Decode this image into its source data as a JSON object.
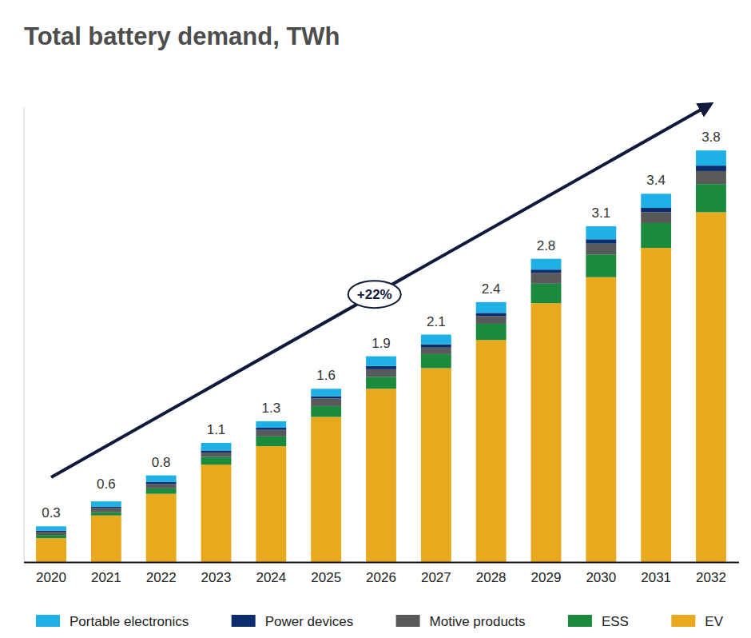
{
  "chart_data": {
    "type": "bar",
    "stacked": true,
    "title": "Total battery demand, TWh",
    "annotation": "+22%",
    "tick_labels": "x",
    "legend": "bottom",
    "categories": [
      "2020",
      "2021",
      "2022",
      "2023",
      "2024",
      "2025",
      "2026",
      "2027",
      "2028",
      "2029",
      "2030",
      "2031",
      "2032"
    ],
    "totals": [
      0.3,
      0.6,
      0.8,
      1.1,
      1.3,
      1.6,
      1.9,
      2.1,
      2.4,
      2.8,
      3.1,
      3.4,
      3.8
    ],
    "ylim": [
      0,
      4.2
    ],
    "yticks": [],
    "series": [
      {
        "name": "Portable electronics",
        "color": "#1fb1e6",
        "values": [
          0.04,
          0.05,
          0.06,
          0.07,
          0.06,
          0.07,
          0.09,
          0.09,
          0.1,
          0.1,
          0.12,
          0.13,
          0.14
        ]
      },
      {
        "name": "Power devices",
        "color": "#0b2d6b",
        "values": [
          0.01,
          0.01,
          0.02,
          0.02,
          0.02,
          0.02,
          0.03,
          0.03,
          0.03,
          0.03,
          0.04,
          0.04,
          0.05
        ]
      },
      {
        "name": "Motive products",
        "color": "#58595b",
        "values": [
          0.03,
          0.04,
          0.04,
          0.04,
          0.06,
          0.07,
          0.07,
          0.06,
          0.07,
          0.1,
          0.1,
          0.1,
          0.12
        ]
      },
      {
        "name": "ESS",
        "color": "#1a8a3c",
        "values": [
          0.03,
          0.03,
          0.05,
          0.07,
          0.09,
          0.1,
          0.11,
          0.13,
          0.15,
          0.18,
          0.21,
          0.23,
          0.26
        ]
      },
      {
        "name": "EV",
        "color": "#e8a91f",
        "values": [
          0.22,
          0.43,
          0.63,
          0.9,
          1.07,
          1.34,
          1.6,
          1.79,
          2.05,
          2.39,
          2.63,
          2.9,
          3.23
        ]
      }
    ]
  }
}
